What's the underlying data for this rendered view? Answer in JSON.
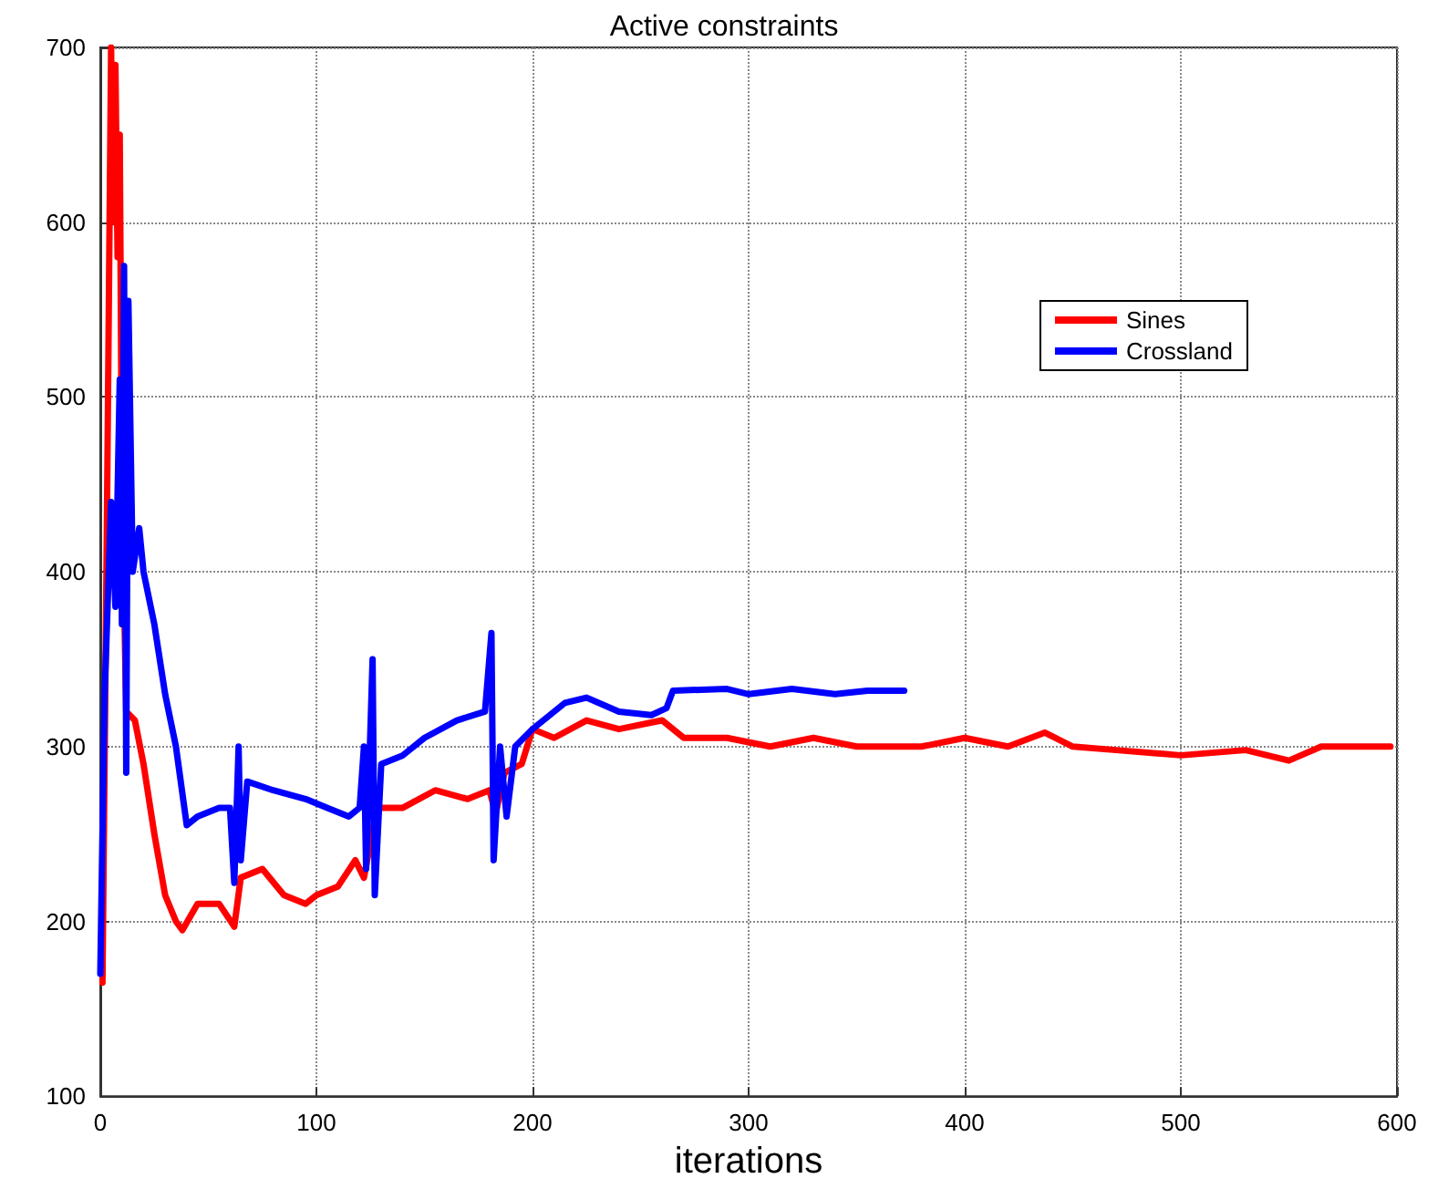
{
  "chart_data": {
    "type": "line",
    "title": "Active constraints",
    "xlabel": "iterations",
    "xlim": [
      0,
      600
    ],
    "xticks": [
      0,
      100,
      200,
      300,
      400,
      500,
      600
    ],
    "ylim": [
      100,
      700
    ],
    "yticks": [
      100,
      200,
      300,
      400,
      500,
      600,
      700
    ],
    "grid": true,
    "legend": "top right",
    "line_style": "solid",
    "marker": "none",
    "series": [
      {
        "name": "Sines",
        "color": "#ff0000",
        "x": [
          1,
          3,
          5,
          6,
          7,
          8,
          9,
          10,
          12,
          16,
          20,
          25,
          30,
          35,
          38,
          45,
          55,
          62,
          65,
          75,
          85,
          95,
          100,
          110,
          118,
          122,
          128,
          140,
          155,
          170,
          180,
          183,
          187,
          195,
          200,
          210,
          225,
          240,
          260,
          270,
          290,
          310,
          330,
          350,
          380,
          400,
          420,
          437,
          450,
          470,
          500,
          530,
          550,
          565,
          590,
          597
        ],
        "values": [
          165,
          420,
          700,
          600,
          690,
          580,
          650,
          450,
          320,
          315,
          290,
          250,
          215,
          200,
          195,
          210,
          210,
          197,
          225,
          230,
          215,
          210,
          215,
          220,
          235,
          225,
          265,
          265,
          275,
          270,
          275,
          262,
          285,
          290,
          310,
          305,
          315,
          310,
          315,
          305,
          305,
          300,
          305,
          300,
          300,
          305,
          300,
          308,
          300,
          298,
          295,
          298,
          292,
          300,
          300,
          300
        ]
      },
      {
        "name": "Crossland",
        "color": "#0000ff",
        "x": [
          0,
          2,
          5,
          7,
          9,
          10,
          11,
          12,
          13,
          15,
          18,
          20,
          25,
          30,
          35,
          40,
          45,
          55,
          60,
          62,
          64,
          65,
          68,
          80,
          95,
          105,
          115,
          120,
          122,
          123,
          126,
          127,
          130,
          140,
          150,
          165,
          178,
          181,
          182,
          185,
          188,
          192,
          200,
          215,
          225,
          240,
          255,
          262,
          265,
          290,
          300,
          320,
          340,
          355,
          372
        ],
        "values": [
          170,
          330,
          440,
          380,
          510,
          370,
          575,
          285,
          555,
          400,
          425,
          400,
          370,
          330,
          300,
          255,
          260,
          265,
          265,
          222,
          300,
          235,
          280,
          275,
          270,
          265,
          260,
          265,
          300,
          230,
          350,
          215,
          290,
          295,
          305,
          315,
          320,
          365,
          235,
          300,
          260,
          300,
          310,
          325,
          328,
          320,
          318,
          322,
          332,
          333,
          330,
          333,
          330,
          332,
          332
        ]
      }
    ]
  }
}
